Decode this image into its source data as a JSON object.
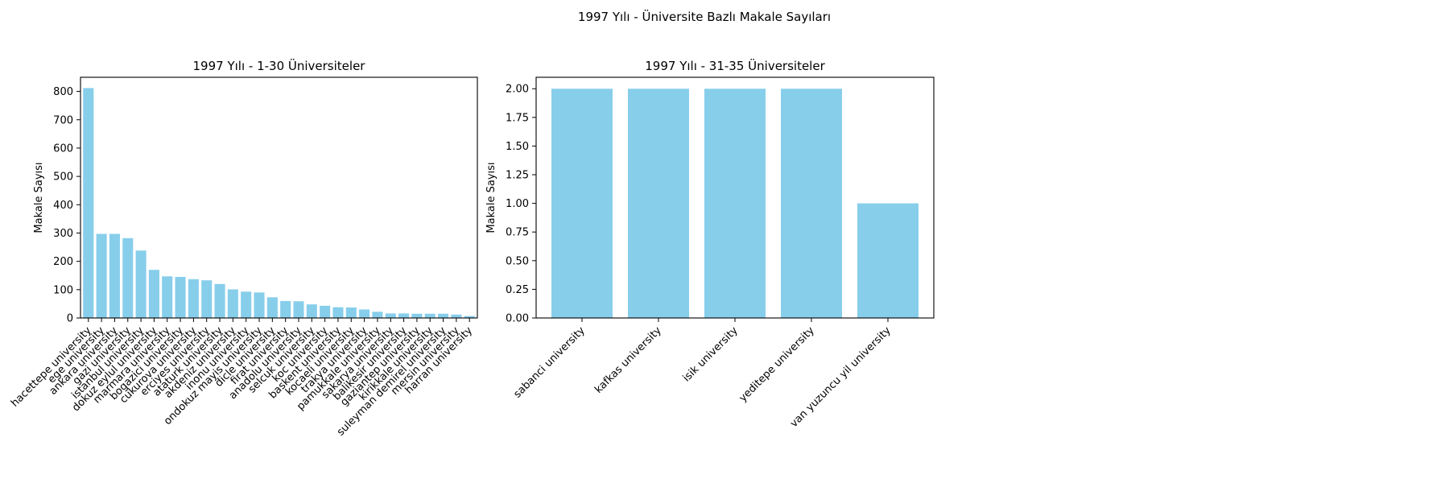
{
  "figure": {
    "title": "1997 Yılı - Üniversite Bazlı Makale Sayıları"
  },
  "colors": {
    "bar": "#87ceeb",
    "axis": "#000000",
    "background": "#ffffff"
  },
  "chart_data": [
    {
      "type": "bar",
      "title": "1997 Yılı - 1-30 Üniversiteler",
      "xlabel": "",
      "ylabel": "Makale Sayısı",
      "ylim": [
        0,
        850
      ],
      "yticks": [
        0,
        100,
        200,
        300,
        400,
        500,
        600,
        700,
        800
      ],
      "ytick_labels": [
        "0",
        "100",
        "200",
        "300",
        "400",
        "500",
        "600",
        "700",
        "800"
      ],
      "grid": false,
      "categories": [
        "hacettepe university",
        "ege university",
        "ankara university",
        "gazi university",
        "istanbul university",
        "dokuz eylul university",
        "marmara university",
        "bogazici university",
        "cukurova university",
        "erciyes university",
        "ataturk university",
        "akdeniz university",
        "inonu university",
        "ondokuz mayis university",
        "dicle university",
        "firat university",
        "anadolu university",
        "selcuk university",
        "koc university",
        "baskent university",
        "kocaeli university",
        "trakya university",
        "pamukkale university",
        "sakarya university",
        "balikesir university",
        "gaziantep university",
        "kirikkale university",
        "suleyman demirel university",
        "mersin university",
        "harran university"
      ],
      "values": [
        812,
        297,
        297,
        282,
        238,
        170,
        147,
        145,
        137,
        133,
        120,
        101,
        93,
        90,
        73,
        60,
        59,
        48,
        43,
        38,
        37,
        30,
        22,
        16,
        16,
        15,
        15,
        15,
        12,
        7
      ]
    },
    {
      "type": "bar",
      "title": "1997 Yılı - 31-35 Üniversiteler",
      "xlabel": "",
      "ylabel": "Makale Sayısı",
      "ylim": [
        0,
        2.1
      ],
      "yticks": [
        0,
        0.25,
        0.5,
        0.75,
        1.0,
        1.25,
        1.5,
        1.75,
        2.0
      ],
      "ytick_labels": [
        "0.00",
        "0.25",
        "0.50",
        "0.75",
        "1.00",
        "1.25",
        "1.50",
        "1.75",
        "2.00"
      ],
      "grid": false,
      "categories": [
        "sabanci university",
        "kafkas university",
        "isik university",
        "yeditepe university",
        "van yuzuncu yil university"
      ],
      "values": [
        2,
        2,
        2,
        2,
        1
      ]
    }
  ]
}
